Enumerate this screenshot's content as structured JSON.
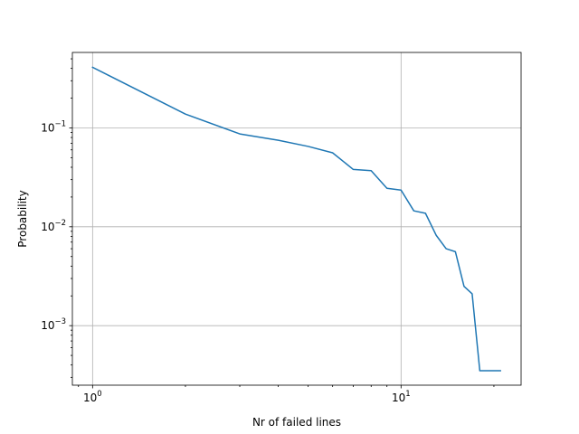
{
  "chart_data": {
    "type": "line",
    "title": "",
    "xlabel": "Nr of failed lines",
    "ylabel": "Probability",
    "xscale": "log",
    "yscale": "log",
    "xlim": [
      0.86,
      24.5
    ],
    "ylim": [
      0.00025,
      0.58
    ],
    "grid": true,
    "x_major_ticks": [
      {
        "value": 1,
        "base": "10",
        "exp": "0"
      },
      {
        "value": 10,
        "base": "10",
        "exp": "1"
      }
    ],
    "y_major_ticks": [
      {
        "value": 0.001,
        "base": "10",
        "exp": "−3"
      },
      {
        "value": 0.01,
        "base": "10",
        "exp": "−2"
      },
      {
        "value": 0.1,
        "base": "10",
        "exp": "−1"
      }
    ],
    "series": [
      {
        "color": "#1f77b4",
        "x": [
          1,
          2,
          3,
          4,
          5,
          6,
          7,
          8,
          9,
          10,
          11,
          12,
          13,
          14,
          15,
          16,
          17,
          18,
          21
        ],
        "y": [
          0.41,
          0.138,
          0.087,
          0.075,
          0.065,
          0.056,
          0.038,
          0.037,
          0.0245,
          0.0235,
          0.0145,
          0.0137,
          0.0082,
          0.006,
          0.0056,
          0.0025,
          0.0021,
          0.00035,
          0.00035
        ]
      }
    ]
  }
}
